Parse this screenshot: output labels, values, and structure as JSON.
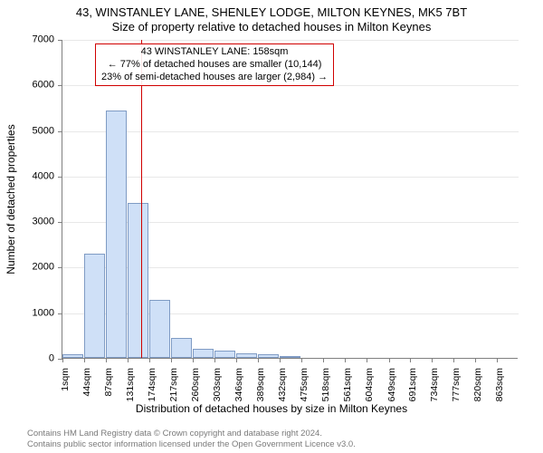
{
  "title_main": "43, WINSTANLEY LANE, SHENLEY LODGE, MILTON KEYNES, MK5 7BT",
  "title_sub": "Size of property relative to detached houses in Milton Keynes",
  "yaxis_label": "Number of detached properties",
  "xaxis_label": "Distribution of detached houses by size in Milton Keynes",
  "chart": {
    "type": "histogram",
    "bar_fill_color": "#cfe0f7",
    "bar_stroke_color": "#7f9bc4",
    "background_color": "#ffffff",
    "grid_color": "#e8e8e8",
    "axis_color": "#808080",
    "ref_line_color": "#d00000",
    "ref_line_value": 158,
    "x_bin_width": 43,
    "ylim": [
      0,
      7000
    ],
    "ytick_step": 1000,
    "x_ticks": [
      1,
      44,
      87,
      131,
      174,
      217,
      260,
      303,
      346,
      389,
      432,
      475,
      518,
      561,
      604,
      649,
      691,
      734,
      777,
      820,
      863
    ],
    "x_tick_labels": [
      "1sqm",
      "44sqm",
      "87sqm",
      "131sqm",
      "174sqm",
      "217sqm",
      "260sqm",
      "303sqm",
      "346sqm",
      "389sqm",
      "432sqm",
      "475sqm",
      "518sqm",
      "561sqm",
      "604sqm",
      "649sqm",
      "691sqm",
      "734sqm",
      "777sqm",
      "820sqm",
      "863sqm"
    ],
    "bars": [
      {
        "x": 1,
        "count": 80
      },
      {
        "x": 44,
        "count": 2280
      },
      {
        "x": 87,
        "count": 5430
      },
      {
        "x": 131,
        "count": 3410
      },
      {
        "x": 174,
        "count": 1280
      },
      {
        "x": 217,
        "count": 440
      },
      {
        "x": 260,
        "count": 200
      },
      {
        "x": 303,
        "count": 160
      },
      {
        "x": 346,
        "count": 100
      },
      {
        "x": 389,
        "count": 85
      },
      {
        "x": 432,
        "count": 50
      }
    ]
  },
  "annotation": {
    "line1": "43 WINSTANLEY LANE: 158sqm",
    "line2": "← 77% of detached houses are smaller (10,144)",
    "line3": "23% of semi-detached houses are larger (2,984) →",
    "border_color": "#d00000"
  },
  "footer": {
    "line1": "Contains HM Land Registry data © Crown copyright and database right 2024.",
    "line2": "Contains public sector information licensed under the Open Government Licence v3.0."
  },
  "title_fontsize": 13,
  "label_fontsize": 12,
  "tick_fontsize": 11,
  "annotation_fontsize": 11,
  "footer_fontsize": 9.5,
  "footer_color": "#7a7a7a"
}
